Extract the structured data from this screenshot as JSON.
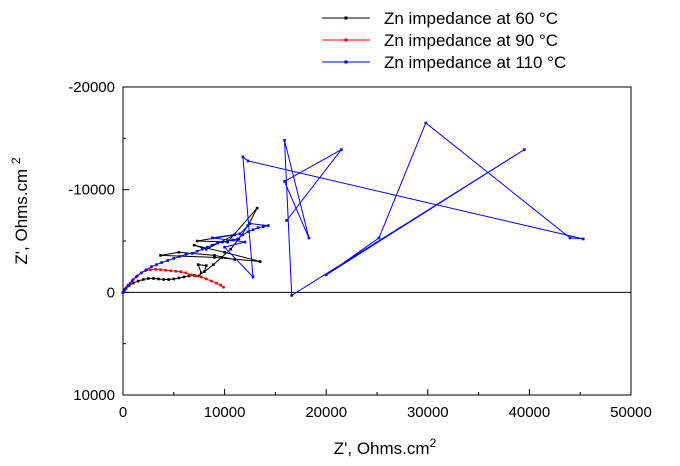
{
  "chart_data": {
    "type": "line",
    "xlabel": "Z', Ohms.cm",
    "xlabel_sup": "2",
    "ylabel": "Z', Ohms.cm",
    "ylabel_sup": "2",
    "xlim": [
      0,
      50000
    ],
    "ylim": [
      10000,
      -20000
    ],
    "xticks": [
      0,
      10000,
      20000,
      30000,
      40000,
      50000
    ],
    "yticks": [
      -20000,
      -10000,
      0,
      10000
    ],
    "grid": false,
    "legend": "top-right",
    "series": [
      {
        "name": "Zn impedance at 60 °C",
        "color": "#000000",
        "points": [
          [
            0,
            0
          ],
          [
            100,
            -150
          ],
          [
            300,
            -400
          ],
          [
            600,
            -650
          ],
          [
            1000,
            -900
          ],
          [
            1500,
            -1100
          ],
          [
            2000,
            -1250
          ],
          [
            2500,
            -1350
          ],
          [
            3000,
            -1350
          ],
          [
            3500,
            -1300
          ],
          [
            4000,
            -1250
          ],
          [
            4500,
            -1250
          ],
          [
            5000,
            -1300
          ],
          [
            5500,
            -1400
          ],
          [
            6000,
            -1500
          ],
          [
            6500,
            -1600
          ],
          [
            7000,
            -1650
          ],
          [
            7500,
            -1600
          ],
          [
            7700,
            -1900
          ],
          [
            7400,
            -2700
          ],
          [
            8200,
            -2600
          ],
          [
            8000,
            -2000
          ],
          [
            8900,
            -2700
          ],
          [
            9700,
            -3400
          ],
          [
            10600,
            -4200
          ],
          [
            11400,
            -5200
          ],
          [
            12300,
            -6500
          ],
          [
            13200,
            -8200
          ],
          [
            10300,
            -4900
          ],
          [
            7300,
            -5000
          ],
          [
            11000,
            -5600
          ],
          [
            8200,
            -4200
          ],
          [
            7000,
            -4600
          ],
          [
            10000,
            -3900
          ],
          [
            13500,
            -3000
          ],
          [
            9000,
            -3400
          ],
          [
            3700,
            -3600
          ],
          [
            5500,
            -3900
          ],
          [
            9000,
            -3600
          ],
          [
            11000,
            -3200
          ]
        ]
      },
      {
        "name": "Zn impedance at 90 °C",
        "color": "#ff0000",
        "points": [
          [
            0,
            0
          ],
          [
            150,
            -250
          ],
          [
            400,
            -550
          ],
          [
            700,
            -900
          ],
          [
            1000,
            -1250
          ],
          [
            1400,
            -1600
          ],
          [
            1800,
            -1900
          ],
          [
            2200,
            -2100
          ],
          [
            2700,
            -2200
          ],
          [
            3200,
            -2250
          ],
          [
            3700,
            -2200
          ],
          [
            4200,
            -2150
          ],
          [
            4700,
            -2100
          ],
          [
            5200,
            -2050
          ],
          [
            5700,
            -2000
          ],
          [
            6200,
            -1900
          ],
          [
            6700,
            -1700
          ],
          [
            7200,
            -1600
          ],
          [
            7700,
            -1500
          ],
          [
            8200,
            -1300
          ],
          [
            8700,
            -1100
          ],
          [
            9200,
            -900
          ],
          [
            9600,
            -700
          ],
          [
            9900,
            -500
          ]
        ]
      },
      {
        "name": "Zn impedance at 110 °C",
        "color": "#0000ff",
        "points": [
          [
            0,
            0
          ],
          [
            200,
            -300
          ],
          [
            500,
            -700
          ],
          [
            900,
            -1100
          ],
          [
            1300,
            -1500
          ],
          [
            1800,
            -1900
          ],
          [
            2300,
            -2200
          ],
          [
            2800,
            -2500
          ],
          [
            3300,
            -2700
          ],
          [
            3800,
            -2900
          ],
          [
            4400,
            -3100
          ],
          [
            5000,
            -3300
          ],
          [
            5600,
            -3500
          ],
          [
            6200,
            -3700
          ],
          [
            6800,
            -3800
          ],
          [
            7300,
            -4000
          ],
          [
            7800,
            -4200
          ],
          [
            8300,
            -4400
          ],
          [
            8800,
            -4600
          ],
          [
            9300,
            -4800
          ],
          [
            9800,
            -4900
          ],
          [
            10300,
            -5000
          ],
          [
            10800,
            -5100
          ],
          [
            11300,
            -5200
          ],
          [
            11800,
            -5600
          ],
          [
            12300,
            -5900
          ],
          [
            12800,
            -6100
          ],
          [
            13300,
            -6300
          ],
          [
            13800,
            -6400
          ],
          [
            14300,
            -6500
          ],
          [
            12500,
            -6700
          ],
          [
            11500,
            -5700
          ],
          [
            8800,
            -5300
          ],
          [
            12000,
            -4900
          ],
          [
            10000,
            -4400
          ],
          [
            12800,
            -1500
          ],
          [
            11800,
            -13200
          ],
          [
            12300,
            -12800
          ],
          [
            45300,
            -5200
          ],
          [
            44000,
            -5300
          ],
          [
            29800,
            -16500
          ],
          [
            25200,
            -5300
          ],
          [
            20000,
            -1700
          ],
          [
            39500,
            -13900
          ],
          [
            16600,
            300
          ],
          [
            15900,
            -14800
          ],
          [
            18300,
            -5300
          ],
          [
            15900,
            -10800
          ],
          [
            21500,
            -13900
          ],
          [
            16100,
            -7000
          ]
        ]
      }
    ]
  }
}
